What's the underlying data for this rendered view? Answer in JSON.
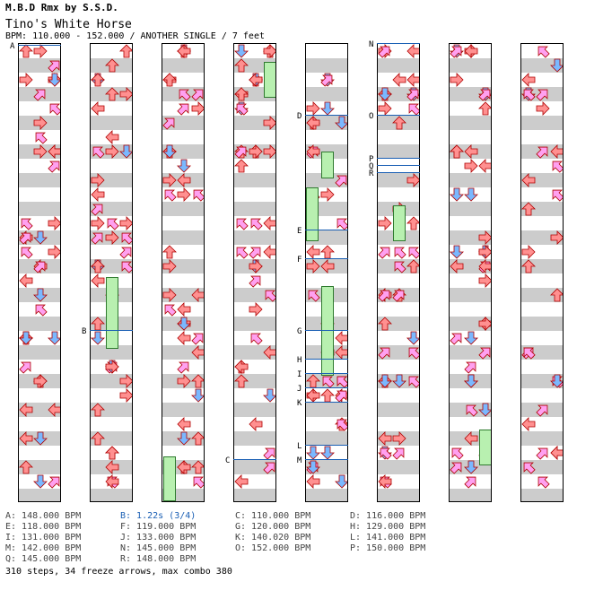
{
  "header": {
    "artist_line": "M.B.D Rmx by S.S.D.",
    "title": "Tino's White Horse",
    "info": "BPM: 110.000 - 152.000 / ANOTHER SINGLE / 7 feet"
  },
  "columns": [
    {
      "labels": [
        "A"
      ]
    },
    {
      "labels": [
        "B"
      ]
    },
    {
      "labels": []
    },
    {
      "labels": [
        "C"
      ]
    },
    {
      "labels": [
        "D",
        "E",
        "F",
        "G",
        "H",
        "I",
        "J",
        "K",
        "L",
        "M"
      ]
    },
    {
      "labels": [
        "N",
        "O",
        "P",
        "Q",
        "R"
      ]
    },
    {
      "labels": []
    },
    {
      "labels": []
    }
  ],
  "legend": [
    {
      "text": "A: 148.000 BPM",
      "hl": false
    },
    {
      "text": "B: 1.22s (3/4)",
      "hl": true
    },
    {
      "text": "C: 110.000 BPM",
      "hl": false
    },
    {
      "text": "D: 116.000 BPM",
      "hl": false
    },
    {
      "text": "E: 118.000 BPM",
      "hl": false
    },
    {
      "text": "F: 119.000 BPM",
      "hl": false
    },
    {
      "text": "G: 120.000 BPM",
      "hl": false
    },
    {
      "text": "H: 129.000 BPM",
      "hl": false
    },
    {
      "text": "I: 131.000 BPM",
      "hl": false
    },
    {
      "text": "J: 133.000 BPM",
      "hl": false
    },
    {
      "text": "K: 140.020 BPM",
      "hl": false
    },
    {
      "text": "L: 141.000 BPM",
      "hl": false
    },
    {
      "text": "M: 142.000 BPM",
      "hl": false
    },
    {
      "text": "N: 145.000 BPM",
      "hl": false
    },
    {
      "text": "O: 152.000 BPM",
      "hl": false
    },
    {
      "text": "P: 150.000 BPM",
      "hl": false
    },
    {
      "text": "Q: 145.000 BPM",
      "hl": false
    },
    {
      "text": "R: 148.000 BPM",
      "hl": false
    }
  ],
  "summary": "310 steps, 34 freeze arrows, max combo 380",
  "colors": {
    "left": "#ff9090",
    "down": "#7ab8ff",
    "up": "#ff9090",
    "right": "#ff9090",
    "pink": "#ffa0f0",
    "freeze": "#b8f0b0",
    "stripe": "#cccccc",
    "bpm_line": "#1a5fb4"
  }
}
